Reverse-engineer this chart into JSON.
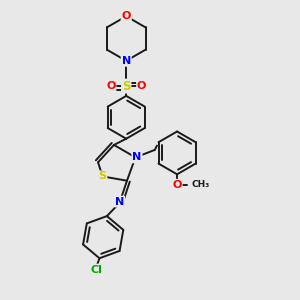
{
  "background_color": "#e8e8e8",
  "bond_color": "#1a1a1a",
  "atom_colors": {
    "N": "#0000ff",
    "O": "#ff0000",
    "S": "#cccc00",
    "Cl": "#00aa00",
    "C": "#1a1a1a"
  },
  "figsize": [
    3.0,
    3.0
  ],
  "dpi": 100,
  "xlim": [
    0.0,
    1.0
  ],
  "ylim": [
    0.0,
    1.0
  ]
}
